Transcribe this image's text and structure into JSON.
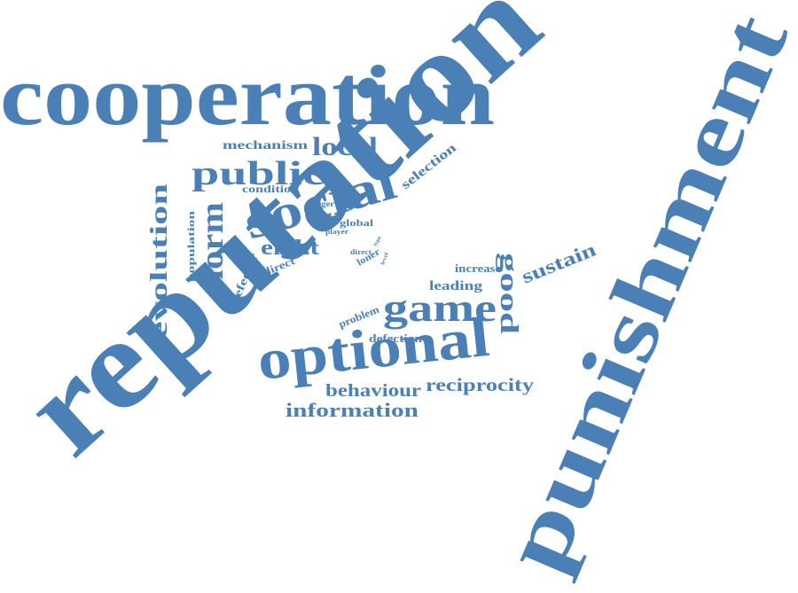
{
  "color": "#4a80b5",
  "words": [
    "cooperation",
    "reputation",
    "punishment",
    "social",
    "optional",
    "game",
    "public",
    "local",
    "norm",
    "evolution",
    "good",
    "sustain",
    "eight",
    "reciprocity",
    "behaviour",
    "information",
    "mechanism",
    "selection",
    "condition",
    "population",
    "defector",
    "indirect",
    "leading",
    "increase",
    "defection",
    "problem",
    "larger",
    "global",
    "player",
    "direct",
    "loner",
    "type",
    "level"
  ]
}
